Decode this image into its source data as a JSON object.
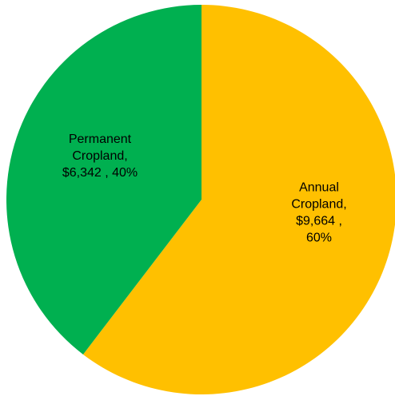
{
  "chart_data": {
    "type": "pie",
    "title": "",
    "start_angle_deg": 0,
    "direction": "clockwise",
    "legend": "none",
    "slices": [
      {
        "name": "Annual Cropland",
        "value": 9664,
        "percent": 60,
        "color": "#FFC000",
        "label_lines": [
          "Annual",
          "Cropland,",
          "$9,664 ,",
          "60%"
        ]
      },
      {
        "name": "Permanent Cropland",
        "value": 6342,
        "percent": 40,
        "color": "#00B050",
        "label_lines": [
          "Permanent",
          "Cropland,",
          "$6,342 , 40%"
        ]
      }
    ]
  }
}
